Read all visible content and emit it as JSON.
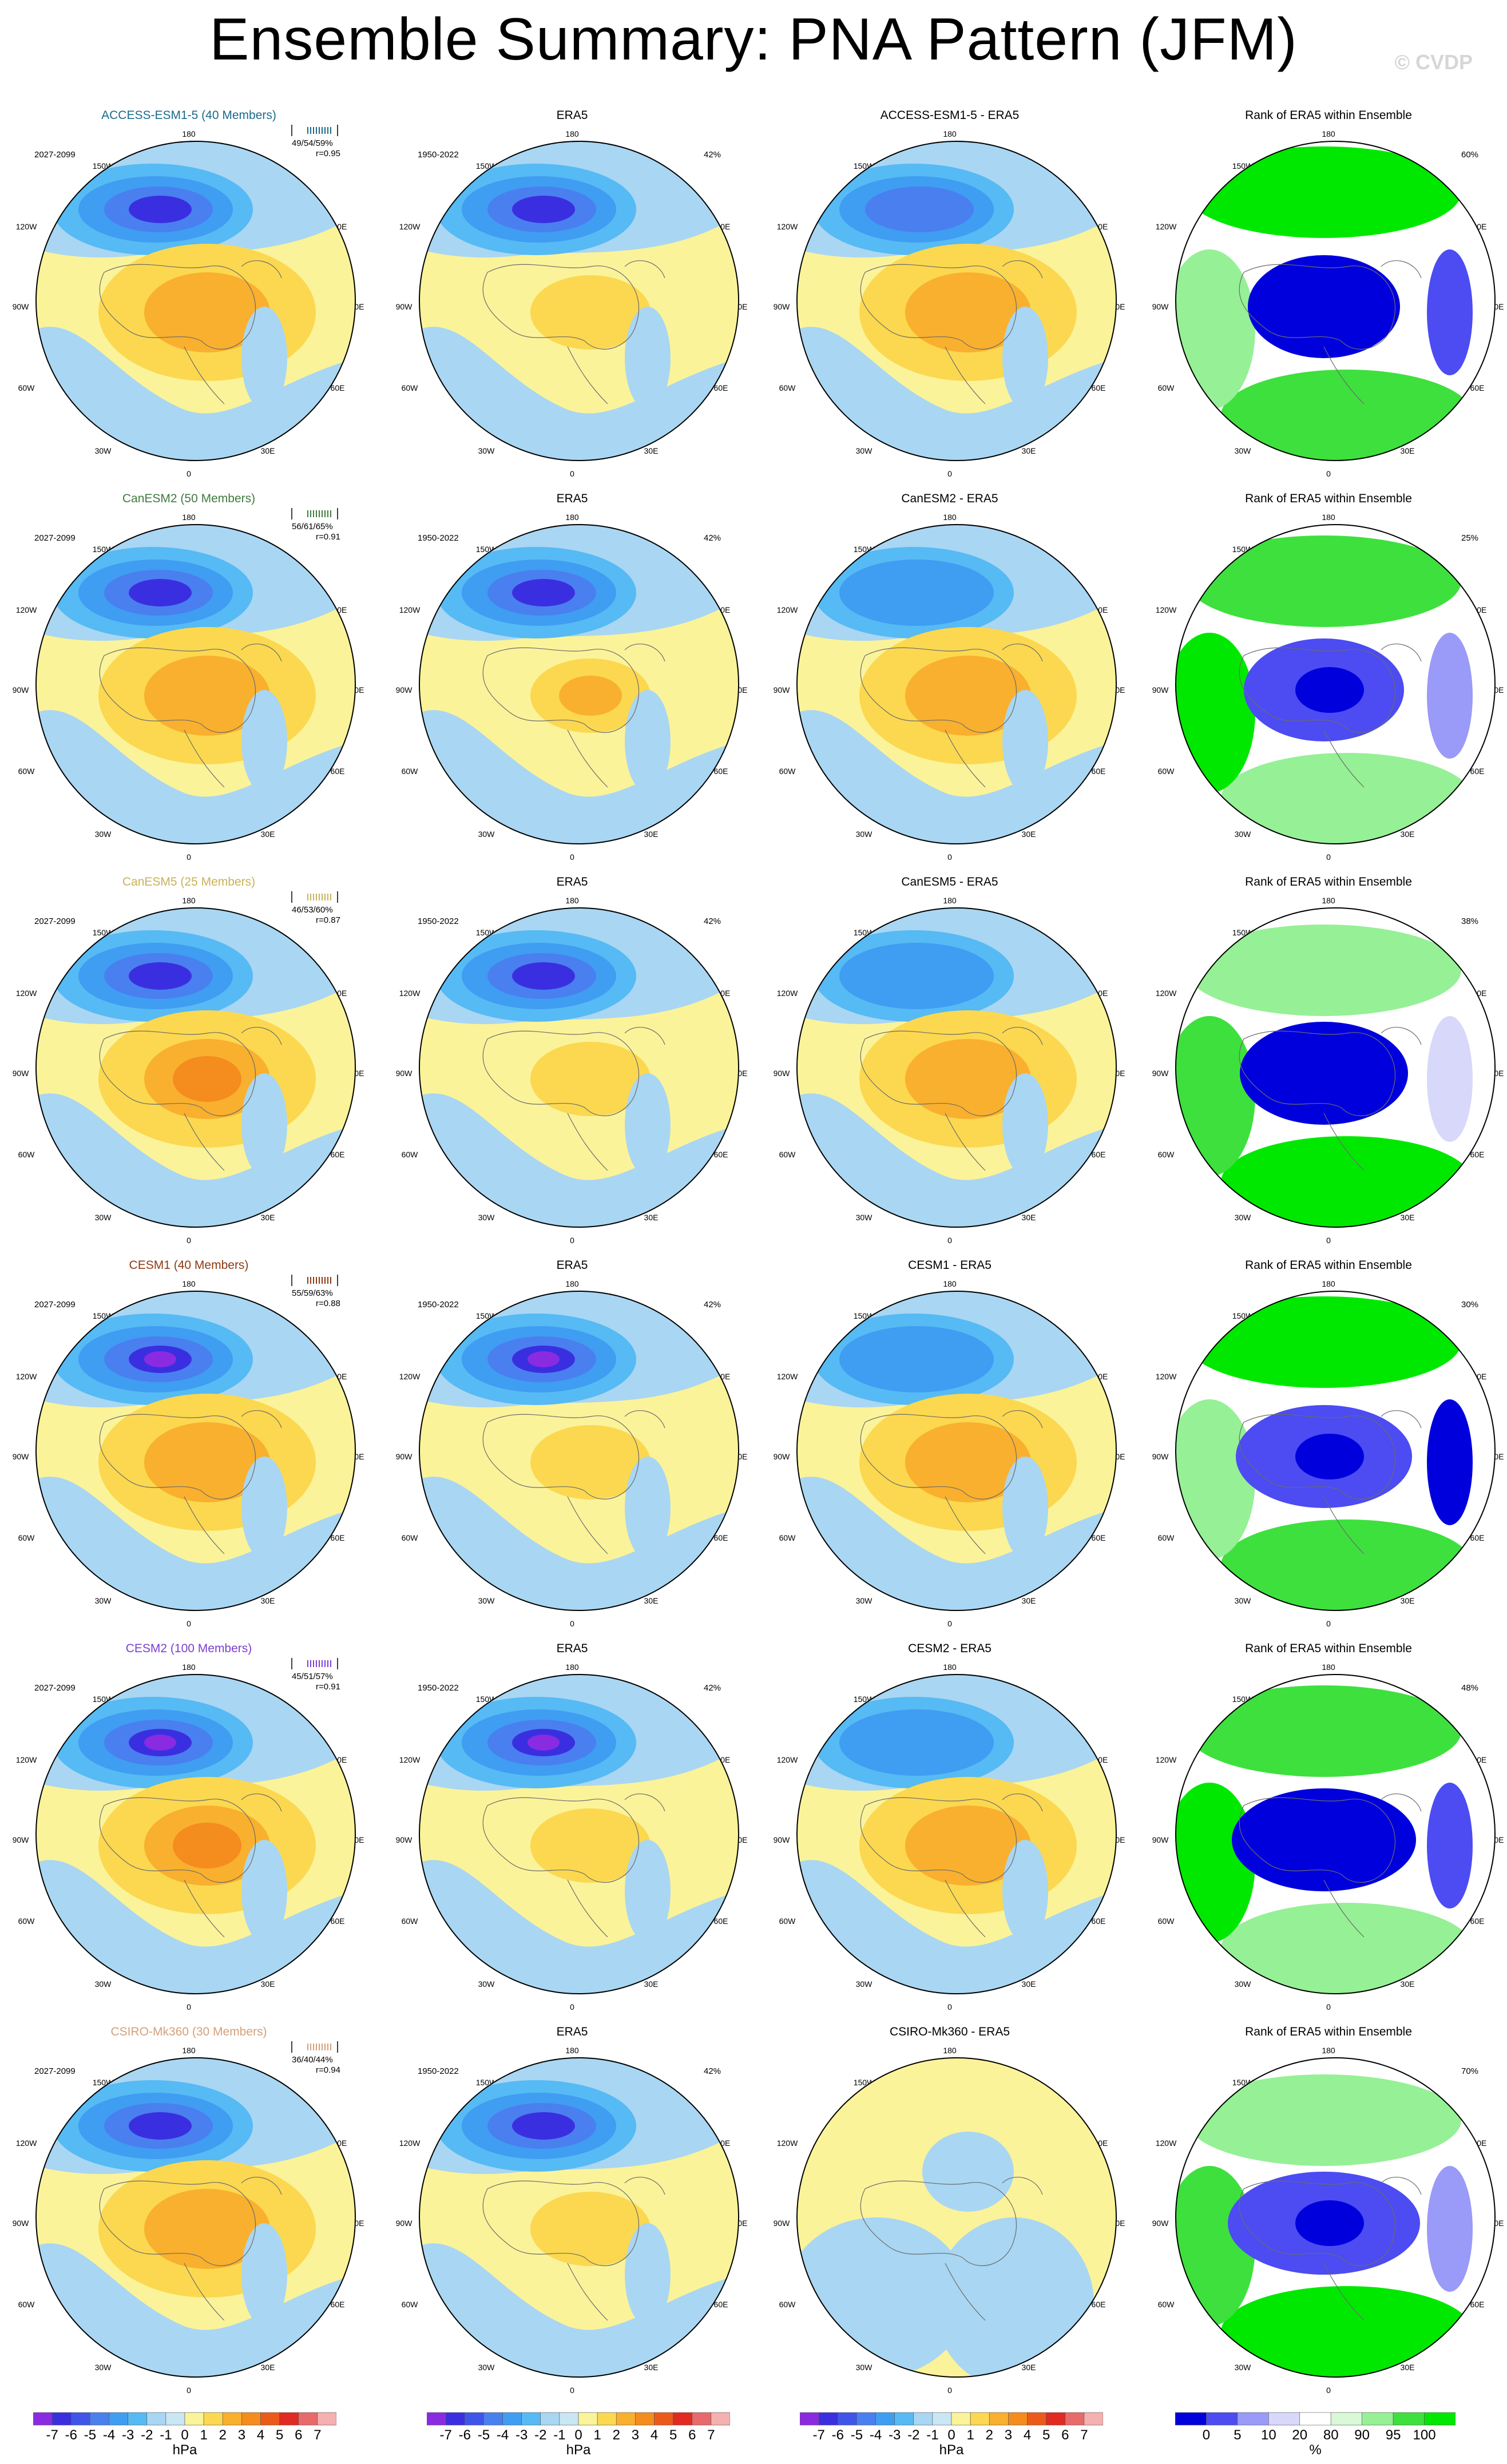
{
  "title": "Ensemble Summary: PNA Pattern (JFM)",
  "watermark": "© CVDP",
  "obs_name": "ERA5",
  "rank_title": "Rank of ERA5 within Ensemble",
  "model_period": "2027-2099",
  "obs_period": "1950-2022",
  "obs_pct": "42%",
  "lon_labels": {
    "top": "180",
    "bottom": "0",
    "left": "90W",
    "right": "90E",
    "ul": "150W",
    "ur": "150E",
    "ulm": "120W",
    "urm": "120E",
    "llm": "60W",
    "lrm": "60E",
    "ll": "30W",
    "lr": "30E"
  },
  "rows": [
    {
      "model": "ACCESS-ESM1-5",
      "members": "ACCESS-ESM1-5 (40 Members)",
      "diff_title": "ACCESS-ESM1-5 - ERA5",
      "stats": "49/54/59%",
      "r": "r=0.95",
      "rank_pct": "60%",
      "color": "#1a6a8c"
    },
    {
      "model": "CanESM2",
      "members": "CanESM2 (50 Members)",
      "diff_title": "CanESM2 - ERA5",
      "stats": "56/61/65%",
      "r": "r=0.91",
      "rank_pct": "25%",
      "color": "#3f7a3f"
    },
    {
      "model": "CanESM5",
      "members": "CanESM5 (25 Members)",
      "diff_title": "CanESM5 - ERA5",
      "stats": "46/53/60%",
      "r": "r=0.87",
      "rank_pct": "38%",
      "color": "#c9b15a"
    },
    {
      "model": "CESM1",
      "members": "CESM1 (40 Members)",
      "diff_title": "CESM1 - ERA5",
      "stats": "55/59/63%",
      "r": "r=0.88",
      "rank_pct": "30%",
      "color": "#8c3a12"
    },
    {
      "model": "CESM2",
      "members": "CESM2 (100 Members)",
      "diff_title": "CESM2 - ERA5",
      "stats": "45/51/57%",
      "r": "r=0.91",
      "rank_pct": "48%",
      "color": "#7b3fd0"
    },
    {
      "model": "CSIRO-Mk360",
      "members": "CSIRO-Mk360 (30 Members)",
      "diff_title": "CSIRO-Mk360 - ERA5",
      "stats": "36/40/44%",
      "r": "r=0.94",
      "rank_pct": "70%",
      "color": "#d4a07a"
    }
  ],
  "colorbar_hpa": {
    "unit": "hPa",
    "ticks": [
      "-7",
      "-6",
      "-5",
      "-4",
      "-3",
      "-2",
      "-1",
      "0",
      "1",
      "2",
      "3",
      "4",
      "5",
      "6",
      "7"
    ],
    "colors": [
      "#8a2be2",
      "#3a2fe0",
      "#3f55ea",
      "#4a7ff0",
      "#3f9df2",
      "#56baf4",
      "#a9d6f2",
      "#c9e6f4",
      "#fbf39a",
      "#fbd850",
      "#f9b02e",
      "#f48c1e",
      "#ec5a1a",
      "#e02a22",
      "#e86a6a",
      "#f5b0b0"
    ]
  },
  "colorbar_rank": {
    "unit": "%",
    "ticks": [
      "0",
      "5",
      "10",
      "20",
      "80",
      "90",
      "95",
      "100"
    ],
    "colors": [
      "#0000dd",
      "#4c4cf2",
      "#9a9af8",
      "#d8d8fb",
      "#ffffff",
      "#d8f8d8",
      "#96f096",
      "#3ee03e",
      "#00e800"
    ]
  }
}
